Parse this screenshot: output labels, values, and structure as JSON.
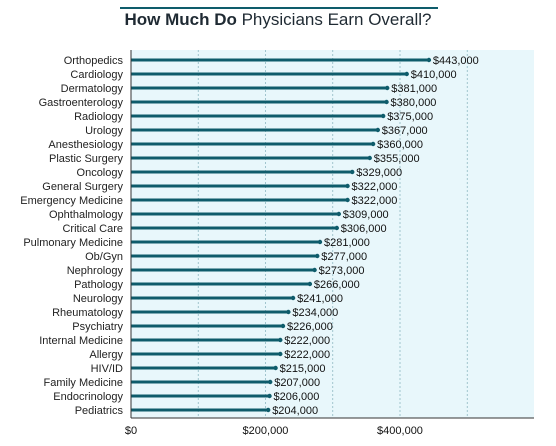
{
  "chart_data": {
    "type": "bar",
    "orientation": "horizontal",
    "title_bold": "How Much Do",
    "title_rest": " Physicians Earn Overall?",
    "categories": [
      "Orthopedics",
      "Cardiology",
      "Dermatology",
      "Gastroenterology",
      "Radiology",
      "Urology",
      "Anesthesiology",
      "Plastic Surgery",
      "Oncology",
      "General Surgery",
      "Emergency Medicine",
      "Ophthalmology",
      "Critical Care",
      "Pulmonary Medicine",
      "Ob/Gyn",
      "Nephrology",
      "Pathology",
      "Neurology",
      "Rheumatology",
      "Psychiatry",
      "Internal Medicine",
      "Allergy",
      "HIV/ID",
      "Family Medicine",
      "Endocrinology",
      "Pediatrics"
    ],
    "values": [
      443000,
      410000,
      381000,
      380000,
      375000,
      367000,
      360000,
      355000,
      329000,
      322000,
      322000,
      309000,
      306000,
      281000,
      277000,
      273000,
      266000,
      241000,
      234000,
      226000,
      222000,
      222000,
      215000,
      207000,
      206000,
      204000
    ],
    "value_labels": [
      "$443,000",
      "$410,000",
      "$381,000",
      "$380,000",
      "$375,000",
      "$367,000",
      "$360,000",
      "$355,000",
      "$329,000",
      "$322,000",
      "$322,000",
      "$309,000",
      "$306,000",
      "$281,000",
      "$277,000",
      "$273,000",
      "$266,000",
      "$241,000",
      "$234,000",
      "$226,000",
      "$222,000",
      "$222,000",
      "$215,000",
      "$207,000",
      "$206,000",
      "$204,000"
    ],
    "x_ticks": [
      0,
      200000,
      400000
    ],
    "x_tick_labels": [
      "$0",
      "$200,000",
      "$400,000"
    ],
    "xlim": [
      0,
      600000
    ],
    "grid": true,
    "colors": {
      "bar": "#0e5c6b",
      "plot_bg": "#e8f7fb",
      "grid": "#8fb8c2",
      "axis": "#333333"
    }
  }
}
